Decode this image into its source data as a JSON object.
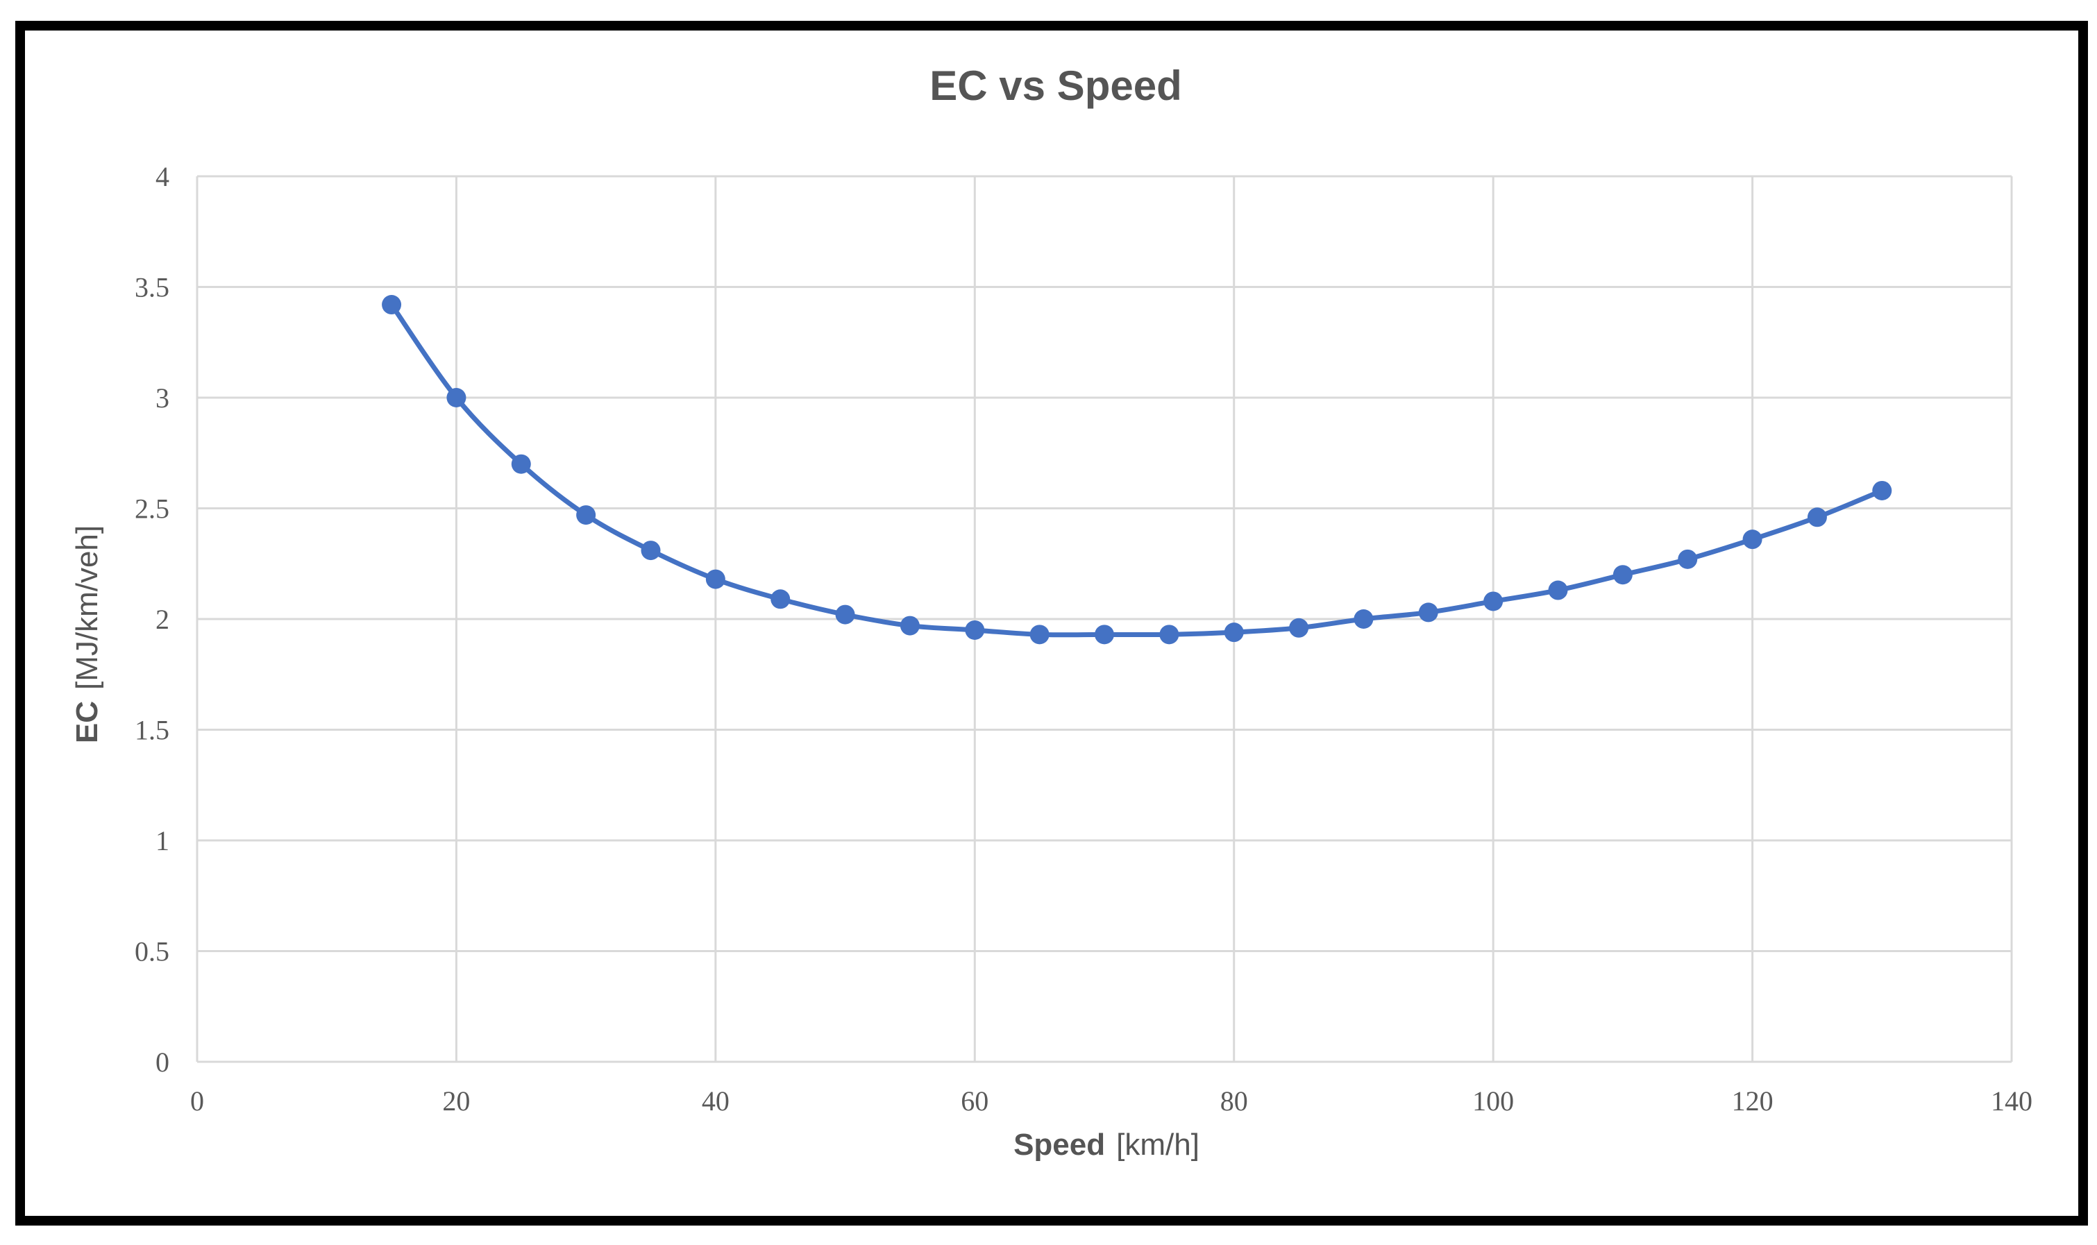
{
  "chart_data": {
    "type": "line",
    "title": "EC vs Speed",
    "xlabel_bold": "Speed",
    "xlabel_unit": "[km/h]",
    "ylabel_bold": "EC",
    "ylabel_unit": "[MJ/km/veh]",
    "xlim": [
      0,
      140
    ],
    "ylim": [
      0,
      4
    ],
    "xticks": [
      "0",
      "20",
      "40",
      "60",
      "80",
      "100",
      "120",
      "140"
    ],
    "yticks": [
      "0",
      "0.5",
      "1",
      "1.5",
      "2",
      "2.5",
      "3",
      "3.5",
      "4"
    ],
    "grid": true,
    "legend": "none",
    "series": [
      {
        "name": "EC",
        "color": "#4472c4",
        "x": [
          15,
          20,
          25,
          30,
          35,
          40,
          45,
          50,
          55,
          60,
          65,
          70,
          75,
          80,
          85,
          90,
          95,
          100,
          105,
          110,
          115,
          120,
          125,
          130
        ],
        "y": [
          3.42,
          3.0,
          2.7,
          2.47,
          2.31,
          2.18,
          2.09,
          2.02,
          1.97,
          1.95,
          1.93,
          1.93,
          1.93,
          1.94,
          1.96,
          2.0,
          2.03,
          2.08,
          2.13,
          2.2,
          2.27,
          2.36,
          2.46,
          2.58
        ]
      }
    ],
    "gridline_color": "#d9d9d9"
  }
}
